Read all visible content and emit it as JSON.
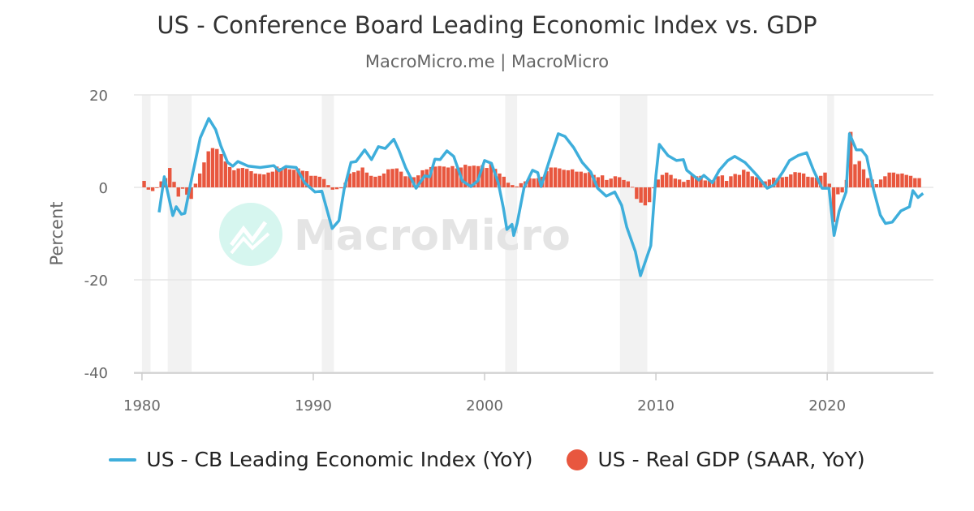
{
  "chart_data": {
    "type": "line+bar",
    "title": "US - Conference Board Leading Economic Index vs. GDP",
    "subtitle": "MacroMicro.me | MacroMicro",
    "watermark": "MacroMicro",
    "ylabel": "Percent",
    "xlabel": "",
    "xlim": [
      1979.53,
      2026.2
    ],
    "ylim": [
      -40,
      20
    ],
    "xticks": [
      1980,
      1990,
      2000,
      2010,
      2020
    ],
    "yticks": [
      20,
      0,
      -20,
      -40
    ],
    "grid": "horizontal",
    "legend_position": "bottom",
    "recessions": [
      [
        1980.0,
        1980.5
      ],
      [
        1981.5,
        1982.9
      ],
      [
        1990.5,
        1991.2
      ],
      [
        2001.2,
        2001.9
      ],
      [
        2007.9,
        2009.5
      ],
      [
        2020.0,
        2020.4
      ]
    ],
    "series": [
      {
        "name": "US - CB Leading Economic Index (YoY)",
        "type": "line",
        "color": "#3eaedb",
        "points": [
          [
            1981.0,
            -5.4
          ],
          [
            1981.3,
            2.3
          ],
          [
            1981.8,
            -6.1
          ],
          [
            1982.0,
            -4.2
          ],
          [
            1982.3,
            -5.8
          ],
          [
            1982.5,
            -5.6
          ],
          [
            1982.9,
            1.9
          ],
          [
            1983.4,
            10.7
          ],
          [
            1983.9,
            14.9
          ],
          [
            1984.3,
            12.5
          ],
          [
            1984.6,
            9
          ],
          [
            1985.0,
            5.4
          ],
          [
            1985.3,
            4.6
          ],
          [
            1985.6,
            5.6
          ],
          [
            1986.2,
            4.6
          ],
          [
            1986.9,
            4.3
          ],
          [
            1987.7,
            4.7
          ],
          [
            1988.0,
            3.6
          ],
          [
            1988.4,
            4.5
          ],
          [
            1989.0,
            4.3
          ],
          [
            1989.5,
            1.0
          ],
          [
            1990.1,
            -1.0
          ],
          [
            1990.5,
            -0.8
          ],
          [
            1991.1,
            -8.9
          ],
          [
            1991.5,
            -7.2
          ],
          [
            1991.8,
            -0.4
          ],
          [
            1992.2,
            5.4
          ],
          [
            1992.5,
            5.6
          ],
          [
            1993.0,
            8.1
          ],
          [
            1993.4,
            6
          ],
          [
            1993.8,
            8.8
          ],
          [
            1994.2,
            8.4
          ],
          [
            1994.7,
            10.4
          ],
          [
            1995.0,
            8.0
          ],
          [
            1995.4,
            4.2
          ],
          [
            1996.0,
            -0.2
          ],
          [
            1996.5,
            2.5
          ],
          [
            1996.8,
            2.3
          ],
          [
            1997.1,
            6.1
          ],
          [
            1997.4,
            6
          ],
          [
            1997.8,
            7.9
          ],
          [
            1998.2,
            6.7
          ],
          [
            1998.7,
            1.4
          ],
          [
            1999.2,
            0.2
          ],
          [
            1999.6,
            1.4
          ],
          [
            2000.0,
            5.8
          ],
          [
            2000.4,
            5.2
          ],
          [
            2000.8,
            1
          ],
          [
            2001.1,
            -4.5
          ],
          [
            2001.3,
            -9.1
          ],
          [
            2001.6,
            -8
          ],
          [
            2001.7,
            -10.4
          ],
          [
            2001.9,
            -7.8
          ],
          [
            2002.3,
            -0.1
          ],
          [
            2002.8,
            3.7
          ],
          [
            2003.1,
            3.2
          ],
          [
            2003.3,
            0.2
          ],
          [
            2003.8,
            6
          ],
          [
            2004.3,
            11.6
          ],
          [
            2004.7,
            11
          ],
          [
            2005.2,
            8.6
          ],
          [
            2005.7,
            5.4
          ],
          [
            2006.2,
            3.3
          ],
          [
            2006.6,
            -0.2
          ],
          [
            2007.1,
            -1.9
          ],
          [
            2007.6,
            -1
          ],
          [
            2008.0,
            -3.9
          ],
          [
            2008.3,
            -8.6
          ],
          [
            2008.8,
            -13.9
          ],
          [
            2009.1,
            -19.1
          ],
          [
            2009.7,
            -12.6
          ],
          [
            2010.0,
            2.5
          ],
          [
            2010.2,
            9.3
          ],
          [
            2010.7,
            6.9
          ],
          [
            2011.2,
            5.8
          ],
          [
            2011.6,
            6
          ],
          [
            2011.8,
            3.7
          ],
          [
            2012.5,
            1.6
          ],
          [
            2012.8,
            2.6
          ],
          [
            2013.3,
            1
          ],
          [
            2013.7,
            3.7
          ],
          [
            2014.2,
            5.8
          ],
          [
            2014.6,
            6.7
          ],
          [
            2015.2,
            5.4
          ],
          [
            2015.5,
            4.2
          ],
          [
            2015.9,
            2.6
          ],
          [
            2016.5,
            -0.2
          ],
          [
            2016.9,
            0.5
          ],
          [
            2017.4,
            3.3
          ],
          [
            2017.8,
            5.8
          ],
          [
            2018.3,
            6.9
          ],
          [
            2018.8,
            7.5
          ],
          [
            2019.2,
            3.7
          ],
          [
            2019.7,
            -0.2
          ],
          [
            2020.1,
            -0.2
          ],
          [
            2020.4,
            -10.4
          ],
          [
            2020.7,
            -5.1
          ],
          [
            2021.1,
            -1
          ],
          [
            2021.3,
            11.6
          ],
          [
            2021.7,
            8.1
          ],
          [
            2022.0,
            8.1
          ],
          [
            2022.3,
            6.7
          ],
          [
            2022.7,
            -0.4
          ],
          [
            2023.1,
            -6
          ],
          [
            2023.4,
            -7.8
          ],
          [
            2023.8,
            -7.5
          ],
          [
            2024.3,
            -5.1
          ],
          [
            2024.8,
            -4.2
          ],
          [
            2025.0,
            -0.7
          ],
          [
            2025.3,
            -2.2
          ],
          [
            2025.6,
            -1.3
          ]
        ]
      },
      {
        "name": "US - Real GDP (SAAR, YoY)",
        "type": "bar",
        "color": "#e8573f",
        "start": 1980.0,
        "frequency": "quarterly",
        "values": [
          1.4,
          -0.5,
          -0.8,
          -0.1,
          1.3,
          2.0,
          4.2,
          1.2,
          -2.0,
          -0.3,
          -1.6,
          -2.5,
          0.8,
          3.0,
          5.4,
          7.8,
          8.5,
          8.3,
          7.2,
          5.6,
          4.4,
          3.7,
          4.1,
          4.2,
          4.0,
          3.5,
          3.0,
          2.9,
          2.8,
          3.2,
          3.4,
          4.5,
          4.2,
          4.2,
          3.9,
          3.8,
          4.1,
          3.6,
          3.5,
          2.5,
          2.5,
          2.3,
          1.8,
          0.5,
          -0.5,
          -0.4,
          -0.2,
          1.0,
          3.0,
          3.3,
          3.6,
          4.3,
          3.2,
          2.5,
          2.3,
          2.5,
          3.0,
          3.9,
          4.0,
          4.1,
          3.4,
          2.4,
          2.4,
          2.2,
          2.6,
          3.7,
          3.9,
          4.4,
          4.5,
          4.6,
          4.5,
          4.3,
          4.6,
          4.1,
          4.3,
          4.9,
          4.6,
          4.7,
          4.6,
          4.8,
          4.2,
          5.2,
          4.0,
          3.0,
          2.3,
          1.0,
          0.5,
          0.2,
          0.9,
          1.3,
          2.0,
          1.9,
          2.0,
          2.3,
          3.5,
          4.3,
          4.3,
          4.1,
          3.8,
          3.7,
          3.9,
          3.4,
          3.4,
          3.1,
          3.3,
          2.7,
          2.2,
          2.6,
          1.6,
          1.9,
          2.4,
          2.2,
          1.6,
          1.3,
          0.1,
          -2.5,
          -3.3,
          -3.9,
          -3.2,
          -0.2,
          1.7,
          2.7,
          3.2,
          2.7,
          1.9,
          1.7,
          1.2,
          1.6,
          2.8,
          2.4,
          2.5,
          1.5,
          1.5,
          1.6,
          2.4,
          2.6,
          1.4,
          2.4,
          2.9,
          2.7,
          3.8,
          3.4,
          2.4,
          2.2,
          1.6,
          1.3,
          1.7,
          2.1,
          2.0,
          2.2,
          2.3,
          2.8,
          3.3,
          3.2,
          3.0,
          2.3,
          2.2,
          2.1,
          2.5,
          3.2,
          0.8,
          -7.5,
          -1.5,
          -1.1,
          1.6,
          12.0,
          5.0,
          5.7,
          3.9,
          2.0,
          1.7,
          0.7,
          1.7,
          2.4,
          3.2,
          3.2,
          2.9,
          3.0,
          2.7,
          2.5,
          2.0,
          2.0
        ]
      }
    ]
  },
  "colors": {
    "recession": "#f2f2f2",
    "grid": "#e6e6e6",
    "watermark_logo": "#d6f6ef",
    "watermark_text": "#e4e4e4"
  }
}
